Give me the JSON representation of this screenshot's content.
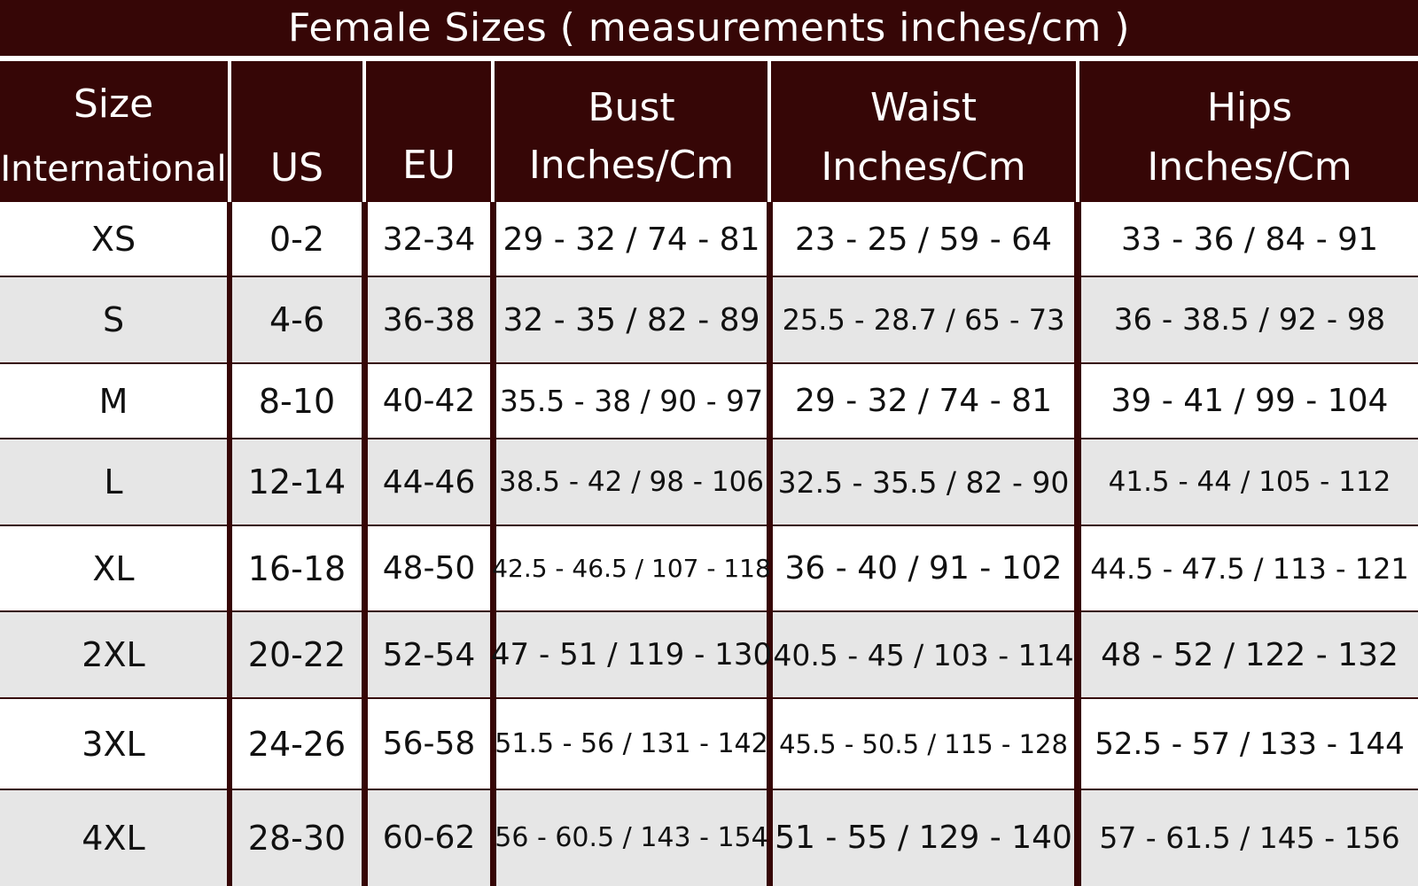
{
  "title": "Female Sizes ( measurements inches/cm )",
  "colors": {
    "header_bg": "#360606",
    "header_text": "#ffffff",
    "row_even": "#ffffff",
    "row_odd": "#e6e6e6",
    "cell_text": "#111111"
  },
  "headers": {
    "size_line1": "Size",
    "size_line2": "International",
    "us": "US",
    "eu": "EU",
    "bust_line1": "Bust",
    "bust_line2": "Inches/Cm",
    "waist_line1": "Waist",
    "waist_line2": "Inches/Cm",
    "hips_line1": "Hips",
    "hips_line2": "Inches/Cm"
  },
  "rows": [
    {
      "size": "XS",
      "us": "0-2",
      "eu": "32-34",
      "bust": "29 - 32 / 74 - 81",
      "waist": "23 - 25 / 59 - 64",
      "hips": "33 - 36 / 84 - 91"
    },
    {
      "size": "S",
      "us": "4-6",
      "eu": "36-38",
      "bust": "32 - 35 / 82 - 89",
      "waist": "25.5 - 28.7 / 65 - 73",
      "hips": "36 - 38.5 / 92 - 98"
    },
    {
      "size": "M",
      "us": "8-10",
      "eu": "40-42",
      "bust": "35.5 - 38 / 90 - 97",
      "waist": "29 - 32 / 74 - 81",
      "hips": "39 - 41 / 99 - 104"
    },
    {
      "size": "L",
      "us": "12-14",
      "eu": "44-46",
      "bust": "38.5 - 42 / 98 - 106",
      "waist": "32.5 - 35.5 / 82 - 90",
      "hips": "41.5 - 44 / 105 - 112"
    },
    {
      "size": "XL",
      "us": "16-18",
      "eu": "48-50",
      "bust": "42.5 - 46.5 / 107 - 118",
      "waist": "36 - 40 / 91 - 102",
      "hips": "44.5 - 47.5 / 113 - 121"
    },
    {
      "size": "2XL",
      "us": "20-22",
      "eu": "52-54",
      "bust": "47 - 51 / 119 - 130",
      "waist": "40.5 - 45 / 103 - 114",
      "hips": "48 - 52 / 122 - 132"
    },
    {
      "size": "3XL",
      "us": "24-26",
      "eu": "56-58",
      "bust": "51.5 - 56 / 131 - 142",
      "waist": "45.5 - 50.5 / 115 - 128",
      "hips": "52.5 - 57 / 133 - 144"
    },
    {
      "size": "4XL",
      "us": "28-30",
      "eu": "60-62",
      "bust": "56 - 60.5 / 143 - 154",
      "waist": "51 - 55 / 129 - 140",
      "hips": "57 - 61.5 / 145 - 156"
    }
  ]
}
